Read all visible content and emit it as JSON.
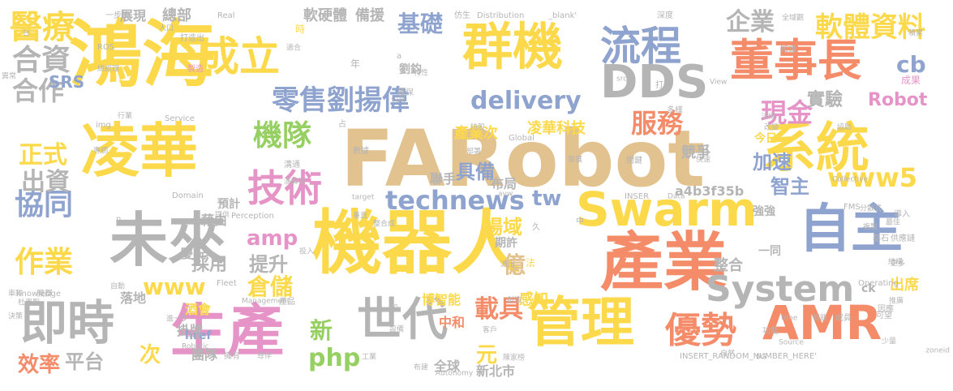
{
  "palette": {
    "yellow": "#fcd94a",
    "orange": "#f48c6a",
    "blue": "#8fa3cf",
    "gray": "#b5b5b5",
    "green": "#96cf62",
    "pink": "#e694c7",
    "tan": "#e2c28f"
  },
  "words": [
    {
      "text": "FARobot",
      "color": "tan"
    },
    {
      "text": "鴻海",
      "color": "yellow"
    },
    {
      "text": "機器人",
      "color": "yellow"
    },
    {
      "text": "產業",
      "color": "orange"
    },
    {
      "text": "凌華",
      "color": "yellow"
    },
    {
      "text": "系統",
      "color": "yellow"
    },
    {
      "text": "群機",
      "color": "yellow"
    },
    {
      "text": "自主",
      "color": "blue"
    },
    {
      "text": "未來",
      "color": "gray"
    },
    {
      "text": "生產",
      "color": "pink"
    },
    {
      "text": "管理",
      "color": "yellow"
    },
    {
      "text": "董事長",
      "color": "orange"
    },
    {
      "text": "流程",
      "color": "blue"
    },
    {
      "text": "成立",
      "color": "yellow"
    },
    {
      "text": "Swarm",
      "color": "yellow"
    },
    {
      "text": "AMR",
      "color": "orange"
    },
    {
      "text": "DDS",
      "color": "gray"
    },
    {
      "text": "即時",
      "color": "gray"
    },
    {
      "text": "世代",
      "color": "gray"
    },
    {
      "text": "技術",
      "color": "pink"
    },
    {
      "text": "System",
      "color": "gray"
    },
    {
      "text": "優勢",
      "color": "orange"
    },
    {
      "text": "醫療",
      "color": "yellow"
    },
    {
      "text": "軟體資料",
      "color": "yellow"
    },
    {
      "text": "合資",
      "color": "gray"
    },
    {
      "text": "零售劉揚偉",
      "color": "blue"
    },
    {
      "text": "合作",
      "color": "gray"
    },
    {
      "text": "機隊",
      "color": "green"
    },
    {
      "text": "協同",
      "color": "blue"
    },
    {
      "text": "作業",
      "color": "yellow"
    },
    {
      "text": "technews",
      "color": "blue"
    },
    {
      "text": "www5",
      "color": "yellow"
    },
    {
      "text": "delivery",
      "color": "blue"
    },
    {
      "text": "cb",
      "color": "blue"
    },
    {
      "text": "正式",
      "color": "yellow"
    },
    {
      "text": "出資",
      "color": "gray"
    },
    {
      "text": "現金",
      "color": "pink"
    },
    {
      "text": "服務",
      "color": "orange"
    },
    {
      "text": "企業",
      "color": "gray"
    },
    {
      "text": "基礎",
      "color": "blue"
    },
    {
      "text": "php",
      "color": "green"
    },
    {
      "text": "www",
      "color": "yellow"
    },
    {
      "text": "倉儲",
      "color": "yellow"
    },
    {
      "text": "載具",
      "color": "orange"
    },
    {
      "text": "新",
      "color": "green"
    },
    {
      "text": "元",
      "color": "yellow"
    },
    {
      "text": "效率",
      "color": "orange"
    },
    {
      "text": "平台",
      "color": "gray"
    },
    {
      "text": "次",
      "color": "yellow"
    },
    {
      "text": "amp",
      "color": "pink"
    },
    {
      "text": "tw",
      "color": "blue"
    },
    {
      "text": "場域",
      "color": "yellow"
    },
    {
      "text": "提升",
      "color": "gray"
    },
    {
      "text": "採用",
      "color": "gray"
    },
    {
      "text": "億",
      "color": "tan"
    },
    {
      "text": "加速",
      "color": "blue"
    },
    {
      "text": "智主",
      "color": "blue"
    },
    {
      "text": "Robot",
      "color": "pink"
    },
    {
      "text": "實驗",
      "color": "gray"
    },
    {
      "text": "具備",
      "color": "blue"
    },
    {
      "text": "SRS",
      "color": "blue"
    },
    {
      "text": "軟硬體",
      "color": "gray"
    },
    {
      "text": "備援",
      "color": "gray"
    },
    {
      "text": "總部",
      "color": "gray"
    },
    {
      "text": "展現",
      "color": "gray"
    },
    {
      "text": "凌華科技",
      "color": "yellow"
    },
    {
      "text": "產業次",
      "color": "yellow"
    },
    {
      "text": "競爭",
      "color": "gray"
    },
    {
      "text": "感知",
      "color": "yellow"
    },
    {
      "text": "整合",
      "color": "gray"
    },
    {
      "text": "出席",
      "color": "yellow"
    },
    {
      "text": "博智能",
      "color": "yellow"
    },
    {
      "text": "中和",
      "color": "orange"
    },
    {
      "text": "新北市",
      "color": "gray"
    },
    {
      "text": "全球",
      "color": "gray"
    },
    {
      "text": "落地",
      "color": "gray"
    },
    {
      "text": "藉由",
      "color": "gray"
    },
    {
      "text": "慶祝",
      "color": "gray"
    },
    {
      "text": "掛牌",
      "color": "gray"
    },
    {
      "text": "酒會",
      "color": "yellow"
    },
    {
      "text": "href",
      "color": "blue"
    },
    {
      "text": "a4b3f35b",
      "color": "gray"
    },
    {
      "text": "聯手",
      "color": "gray"
    },
    {
      "text": "布局",
      "color": "gray"
    },
    {
      "text": "團隊",
      "color": "gray"
    },
    {
      "text": "今日",
      "color": "yellow"
    },
    {
      "text": "強強",
      "color": "gray"
    },
    {
      "text": "一同",
      "color": "gray"
    },
    {
      "text": "ck",
      "color": "gray"
    },
    {
      "text": "成果",
      "color": "pink"
    },
    {
      "text": "期許",
      "color": "gray"
    },
    {
      "text": "預計",
      "color": "gray"
    },
    {
      "text": "劉鈞",
      "color": "gray"
    },
    {
      "text": "年",
      "color": "gray"
    },
    {
      "text": "時",
      "color": "yellow"
    },
    {
      "text": "法",
      "color": "yellow"
    },
    {
      "text": "一步步",
      "color": "gray"
    },
    {
      "text": "人口",
      "color": "gray"
    },
    {
      "text": "打造出",
      "color": "gray"
    },
    {
      "text": "Real",
      "color": "gray"
    },
    {
      "text": "仿生",
      "color": "gray"
    },
    {
      "text": "Distribution",
      "color": "gray"
    },
    {
      "text": "_blank'",
      "color": "gray"
    },
    {
      "text": "深度",
      "color": "gray"
    },
    {
      "text": "全域觀",
      "color": "gray"
    },
    {
      "text": "積累",
      "color": "gray"
    },
    {
      "text": "ROS",
      "color": "gray"
    },
    {
      "text": "總經理",
      "color": "gray"
    },
    {
      "text": "製造",
      "color": "pink"
    },
    {
      "text": "適合",
      "color": "gray"
    },
    {
      "text": "異常",
      "color": "gray"
    },
    {
      "text": "View",
      "color": "gray"
    },
    {
      "text": "知識",
      "color": "gray"
    },
    {
      "text": "特性",
      "color": "gray"
    },
    {
      "text": "打造",
      "color": "gray"
    },
    {
      "text": "src",
      "color": "gray"
    },
    {
      "text": "確保",
      "color": "gray"
    },
    {
      "text": "公司",
      "color": "gray"
    },
    {
      "text": "多樣",
      "color": "gray"
    },
    {
      "text": "Service",
      "color": "gray"
    },
    {
      "text": "行業",
      "color": "gray"
    },
    {
      "text": "img",
      "color": "gray"
    },
    {
      "text": "持股",
      "color": "gray"
    },
    {
      "text": "改變",
      "color": "gray"
    },
    {
      "text": "協助",
      "color": "gray"
    },
    {
      "text": "法博",
      "color": "gray"
    },
    {
      "text": "數據",
      "color": "gray"
    },
    {
      "text": "部署",
      "color": "gray"
    },
    {
      "text": "Global",
      "color": "gray"
    },
    {
      "text": "發展",
      "color": "gray"
    },
    {
      "text": "關鍵",
      "color": "gray"
    },
    {
      "text": "快速",
      "color": "gray"
    },
    {
      "text": "專網",
      "color": "gray"
    },
    {
      "text": "溝通",
      "color": "gray"
    },
    {
      "text": "演算法",
      "color": "gray"
    },
    {
      "text": "Collective",
      "color": "gray"
    },
    {
      "text": "Domain",
      "color": "gray"
    },
    {
      "text": "target",
      "color": "gray"
    },
    {
      "text": "avw",
      "color": "gray"
    },
    {
      "text": "INSER",
      "color": "gray"
    },
    {
      "text": "Data",
      "color": "gray"
    },
    {
      "text": "FMS",
      "color": "gray"
    },
    {
      "text": "分散式",
      "color": "gray"
    },
    {
      "text": "導入",
      "color": "gray"
    },
    {
      "text": "最佳",
      "color": "gray"
    },
    {
      "text": "複製",
      "color": "gray"
    },
    {
      "text": "基石",
      "color": "gray"
    },
    {
      "text": "供應鏈",
      "color": "gray"
    },
    {
      "text": "提供",
      "color": "gray"
    },
    {
      "text": "Perception",
      "color": "gray"
    },
    {
      "text": "垂直",
      "color": "gray"
    },
    {
      "text": "整合成",
      "color": "gray"
    },
    {
      "text": "投入",
      "color": "gray"
    },
    {
      "text": "結構",
      "color": "gray"
    },
    {
      "text": "更多",
      "color": "gray"
    },
    {
      "text": "派出",
      "color": "gray"
    },
    {
      "text": "Fleet",
      "color": "gray"
    },
    {
      "text": "Operating",
      "color": "gray"
    },
    {
      "text": "Knowledge",
      "color": "gray"
    },
    {
      "text": "機群",
      "color": "gray"
    },
    {
      "text": "自動",
      "color": "gray"
    },
    {
      "text": "車隊",
      "color": "gray"
    },
    {
      "text": "杜墨聖",
      "color": "gray"
    },
    {
      "text": "Management",
      "color": "gray"
    },
    {
      "text": "產品",
      "color": "gray"
    },
    {
      "text": "股",
      "color": "gray"
    },
    {
      "text": "創造",
      "color": "gray"
    },
    {
      "text": "推廣",
      "color": "gray"
    },
    {
      "text": "因應",
      "color": "gray"
    },
    {
      "text": "決策",
      "color": "gray"
    },
    {
      "text": "進一步",
      "color": "gray"
    },
    {
      "text": "客戶",
      "color": "gray"
    },
    {
      "text": "智能",
      "color": "gray"
    },
    {
      "text": "成員",
      "color": "gray"
    },
    {
      "text": "time",
      "color": "gray"
    },
    {
      "text": "可望",
      "color": "gray"
    },
    {
      "text": "Robotic",
      "color": "gray"
    },
    {
      "text": "中斷",
      "color": "gray"
    },
    {
      "text": "設備",
      "color": "gray"
    },
    {
      "text": "功能",
      "color": "gray"
    },
    {
      "text": "少量",
      "color": "gray"
    },
    {
      "text": "Source",
      "color": "gray"
    },
    {
      "text": "zoneid",
      "color": "gray"
    },
    {
      "text": "擁有",
      "color": "gray"
    },
    {
      "text": "尊伴",
      "color": "gray"
    },
    {
      "text": "工業",
      "color": "gray"
    },
    {
      "text": "布建",
      "color": "gray"
    },
    {
      "text": "Autonomy",
      "color": "gray"
    },
    {
      "text": "陳家榜",
      "color": "gray"
    },
    {
      "text": "INSERT_RANDOM_NUMBER_HERE'",
      "color": "gray"
    },
    {
      "text": "自然",
      "color": "gray"
    },
    {
      "text": "5G",
      "color": "gray"
    },
    {
      "text": "久",
      "color": "gray"
    },
    {
      "text": "n",
      "color": "gray"
    },
    {
      "text": "台",
      "color": "gray"
    },
    {
      "text": "a",
      "color": "gray"
    },
    {
      "text": "占",
      "color": "gray"
    },
    {
      "text": "中",
      "color": "gray"
    }
  ]
}
